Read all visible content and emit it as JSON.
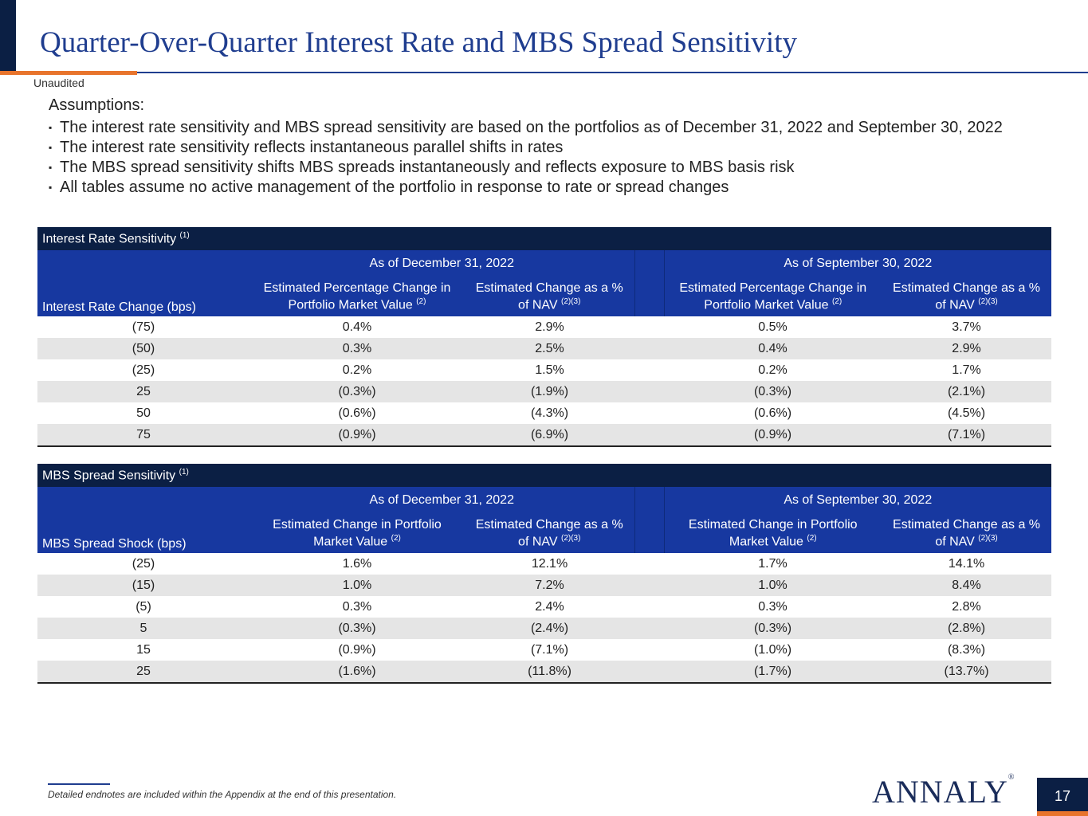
{
  "header": {
    "title": "Quarter-Over-Quarter Interest Rate and MBS Spread Sensitivity",
    "subtitle": "Unaudited"
  },
  "assumptions": {
    "heading": "Assumptions:",
    "items": [
      "The interest rate sensitivity and MBS spread sensitivity are based on the portfolios as of December 31, 2022 and September 30, 2022",
      "The interest rate sensitivity reflects instantaneous parallel shifts in rates",
      "The MBS spread sensitivity shifts MBS spreads instantaneously and reflects exposure to MBS basis risk",
      "All tables assume no active management of the portfolio in response to rate or spread changes"
    ]
  },
  "interest_rate_table": {
    "caption": "Interest Rate Sensitivity",
    "caption_note": "(1)",
    "group1": "As of December 31, 2022",
    "group2": "As of September 30, 2022",
    "row_header": "Interest Rate Change (bps)",
    "col_pmv": "Estimated Percentage Change in Portfolio Market Value",
    "col_pmv_note": "(2)",
    "col_nav": "Estimated Change as a % of NAV",
    "col_nav_note": "(2)(3)",
    "rows": [
      [
        "(75)",
        "0.4%",
        "2.9%",
        "0.5%",
        "3.7%"
      ],
      [
        "(50)",
        "0.3%",
        "2.5%",
        "0.4%",
        "2.9%"
      ],
      [
        "(25)",
        "0.2%",
        "1.5%",
        "0.2%",
        "1.7%"
      ],
      [
        "25",
        "(0.3%)",
        "(1.9%)",
        "(0.3%)",
        "(2.1%)"
      ],
      [
        "50",
        "(0.6%)",
        "(4.3%)",
        "(0.6%)",
        "(4.5%)"
      ],
      [
        "75",
        "(0.9%)",
        "(6.9%)",
        "(0.9%)",
        "(7.1%)"
      ]
    ]
  },
  "mbs_spread_table": {
    "caption": "MBS Spread Sensitivity",
    "caption_note": "(1)",
    "group1": "As of December 31, 2022",
    "group2": "As of September 30, 2022",
    "row_header": "MBS Spread Shock (bps)",
    "col_pmv": "Estimated Change in Portfolio Market Value",
    "col_pmv_note": "(2)",
    "col_nav": "Estimated Change as a % of NAV",
    "col_nav_note": "(2)(3)",
    "rows": [
      [
        "(25)",
        "1.6%",
        "12.1%",
        "1.7%",
        "14.1%"
      ],
      [
        "(15)",
        "1.0%",
        "7.2%",
        "1.0%",
        "8.4%"
      ],
      [
        "(5)",
        "0.3%",
        "2.4%",
        "0.3%",
        "2.8%"
      ],
      [
        "5",
        "(0.3%)",
        "(2.4%)",
        "(0.3%)",
        "(2.8%)"
      ],
      [
        "15",
        "(0.9%)",
        "(7.1%)",
        "(1.0%)",
        "(8.3%)"
      ],
      [
        "25",
        "(1.6%)",
        "(11.8%)",
        "(1.7%)",
        "(13.7%)"
      ]
    ]
  },
  "footer": {
    "endnote": "Detailed endnotes are included within the Appendix at the end of this presentation.",
    "logo_text": "ANNALY",
    "logo_mark": "®",
    "page_number": "17"
  },
  "colors": {
    "navy": "#0b1f44",
    "blue": "#1738a0",
    "title_blue": "#1f3d8f",
    "orange": "#e8742c",
    "stripe": "#e5e5e5"
  }
}
